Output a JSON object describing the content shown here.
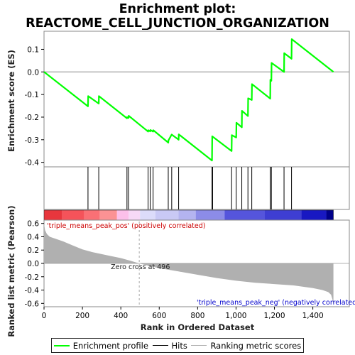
{
  "chart_data": {
    "type": "line",
    "title_line1": "Enrichment plot:",
    "title_line2": "REACTOME_CELL_JUNCTION_ORGANIZATION",
    "top_panel": {
      "ylabel": "Enrichment score (ES)",
      "ylim": [
        -0.42,
        0.18
      ],
      "yticks": [
        0.1,
        0.0,
        -0.1,
        -0.2,
        -0.3,
        -0.4
      ],
      "ytick_labels": [
        "0.1",
        "0.0",
        "-0.1",
        "-0.2",
        "-0.3",
        "-0.4"
      ],
      "baseline": 0.0,
      "series": [
        {
          "name": "Enrichment profile",
          "color": "#00ff00",
          "x": [
            0,
            229,
            230,
            285,
            286,
            432,
            433,
            440,
            441,
            542,
            543,
            553,
            554,
            568,
            569,
            647,
            648,
            665,
            666,
            701,
            702,
            875,
            876,
            977,
            978,
            1001,
            1002,
            1030,
            1031,
            1062,
            1063,
            1082,
            1083,
            1178,
            1179,
            1184,
            1185,
            1250,
            1251,
            1289,
            1290,
            1507
          ],
          "y": [
            0.0,
            -0.152,
            -0.107,
            -0.14,
            -0.107,
            -0.205,
            -0.2,
            -0.204,
            -0.194,
            -0.264,
            -0.258,
            -0.263,
            -0.257,
            -0.264,
            -0.258,
            -0.313,
            -0.303,
            -0.277,
            -0.278,
            -0.3,
            -0.276,
            -0.392,
            -0.285,
            -0.35,
            -0.28,
            -0.29,
            -0.225,
            -0.245,
            -0.172,
            -0.195,
            -0.117,
            -0.124,
            -0.054,
            -0.118,
            -0.035,
            -0.039,
            0.04,
            0.0,
            0.083,
            0.058,
            0.145,
            0.0
          ]
        }
      ]
    },
    "hits_panel": {
      "name": "Hits",
      "color": "#000000",
      "positions": [
        229,
        285,
        432,
        440,
        542,
        553,
        568,
        647,
        665,
        701,
        875,
        878,
        977,
        1001,
        1030,
        1062,
        1082,
        1178,
        1184,
        1250,
        1289
      ]
    },
    "color_bar": {
      "segments": [
        {
          "start": 0,
          "end": 95,
          "color": "#e8363d"
        },
        {
          "start": 95,
          "end": 210,
          "color": "#f5535a"
        },
        {
          "start": 210,
          "end": 290,
          "color": "#fa7075"
        },
        {
          "start": 290,
          "end": 380,
          "color": "#fb9294"
        },
        {
          "start": 380,
          "end": 440,
          "color": "#fcc0ea"
        },
        {
          "start": 440,
          "end": 500,
          "color": "#f7d9f6"
        },
        {
          "start": 500,
          "end": 580,
          "color": "#dcdcfa"
        },
        {
          "start": 580,
          "end": 700,
          "color": "#c9c9f5"
        },
        {
          "start": 700,
          "end": 790,
          "color": "#b4b4f0"
        },
        {
          "start": 790,
          "end": 940,
          "color": "#8c8ce8"
        },
        {
          "start": 940,
          "end": 1150,
          "color": "#5555dc"
        },
        {
          "start": 1150,
          "end": 1340,
          "color": "#3e3ed2"
        },
        {
          "start": 1340,
          "end": 1470,
          "color": "#1818c2"
        },
        {
          "start": 1470,
          "end": 1507,
          "color": "#00008a"
        }
      ]
    },
    "bottom_panel": {
      "ylabel": "Ranked list metric (Pearson)",
      "ylim": [
        -0.65,
        0.65
      ],
      "yticks": [
        0.6,
        0.4,
        0.2,
        0.0,
        -0.2,
        -0.4,
        -0.6
      ],
      "ytick_labels": [
        "0.6",
        "0.4",
        "0.2",
        "0.0",
        "-0.2",
        "-0.4",
        "-0.6"
      ],
      "series": [
        {
          "name": "Ranking metric scores",
          "color": "#b0b0b0",
          "x": [
            0,
            5,
            15,
            30,
            60,
            100,
            150,
            200,
            250,
            300,
            350,
            400,
            450,
            496,
            550,
            600,
            700,
            800,
            900,
            1000,
            1100,
            1200,
            1300,
            1400,
            1450,
            1480,
            1495,
            1503,
            1507
          ],
          "y": [
            0.6,
            0.5,
            0.44,
            0.4,
            0.37,
            0.33,
            0.27,
            0.21,
            0.17,
            0.14,
            0.11,
            0.08,
            0.04,
            0.0,
            -0.04,
            -0.07,
            -0.12,
            -0.17,
            -0.22,
            -0.26,
            -0.29,
            -0.31,
            -0.33,
            -0.37,
            -0.4,
            -0.43,
            -0.47,
            -0.55,
            -0.62
          ]
        }
      ],
      "annotations": {
        "pos_label": "'triple_means_peak_pos' (positively correlated)",
        "pos_color": "#cc0000",
        "zero_cross": "Zero cross at 496",
        "zero_cross_x": 496,
        "neg_label": "'triple_means_peak_neg' (negatively correlated)",
        "neg_color": "#0000cc"
      }
    },
    "xlabel": "Rank in Ordered Dataset",
    "xlim": [
      0,
      1590
    ],
    "xticks": [
      0,
      200,
      400,
      600,
      800,
      1000,
      1200,
      1400
    ],
    "xtick_labels": [
      "0",
      "200",
      "400",
      "600",
      "800",
      "1,000",
      "1,200",
      "1,400"
    ]
  },
  "legend": {
    "items": [
      {
        "label": "Enrichment profile",
        "color": "#00ff00"
      },
      {
        "label": "Hits",
        "color": "#000000"
      },
      {
        "label": "Ranking metric scores",
        "color": "#b0b0b0"
      }
    ]
  }
}
